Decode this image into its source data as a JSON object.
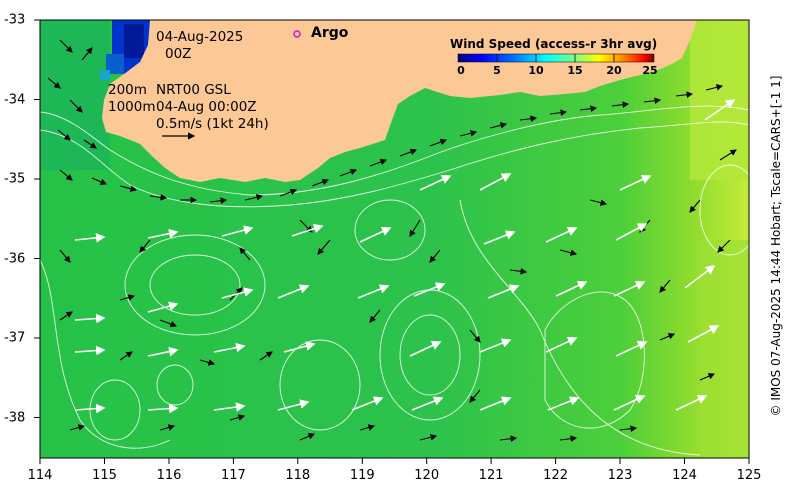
{
  "header": {
    "date": "04-Aug-2025",
    "hour": "00Z",
    "depth1": "200m",
    "depth2": "1000m",
    "product": "NRT00 GSL",
    "valid_time": "04-Aug 00:00Z",
    "vector_scale": "0.5m/s (1kt 24h)",
    "argo_label": "Argo"
  },
  "legend": {
    "title": "Wind Speed (access-r 3hr avg)",
    "ticks": [
      "0",
      "5",
      "10",
      "15",
      "20",
      "25"
    ],
    "colors": [
      "#00007f",
      "#0000ff",
      "#007fff",
      "#00ffff",
      "#7fff7f",
      "#ffff00",
      "#ff7f00",
      "#ff0000",
      "#7f0000"
    ]
  },
  "credit": "© IMOS 07-Aug-2025 14:44 Hobart; Tscale=CARS+[-1 1]",
  "axes": {
    "x_ticks": [
      "114",
      "115",
      "116",
      "117",
      "118",
      "119",
      "120",
      "121",
      "122",
      "123",
      "124",
      "125"
    ],
    "y_ticks": [
      "-33",
      "-34",
      "-35",
      "-36",
      "-37",
      "-38"
    ]
  },
  "colors": {
    "land": "#fbc896",
    "ocean": "#1fb847",
    "ocean_east": "#a8e63a",
    "arrow_black": "#000000",
    "arrow_white": "#ffffff"
  }
}
